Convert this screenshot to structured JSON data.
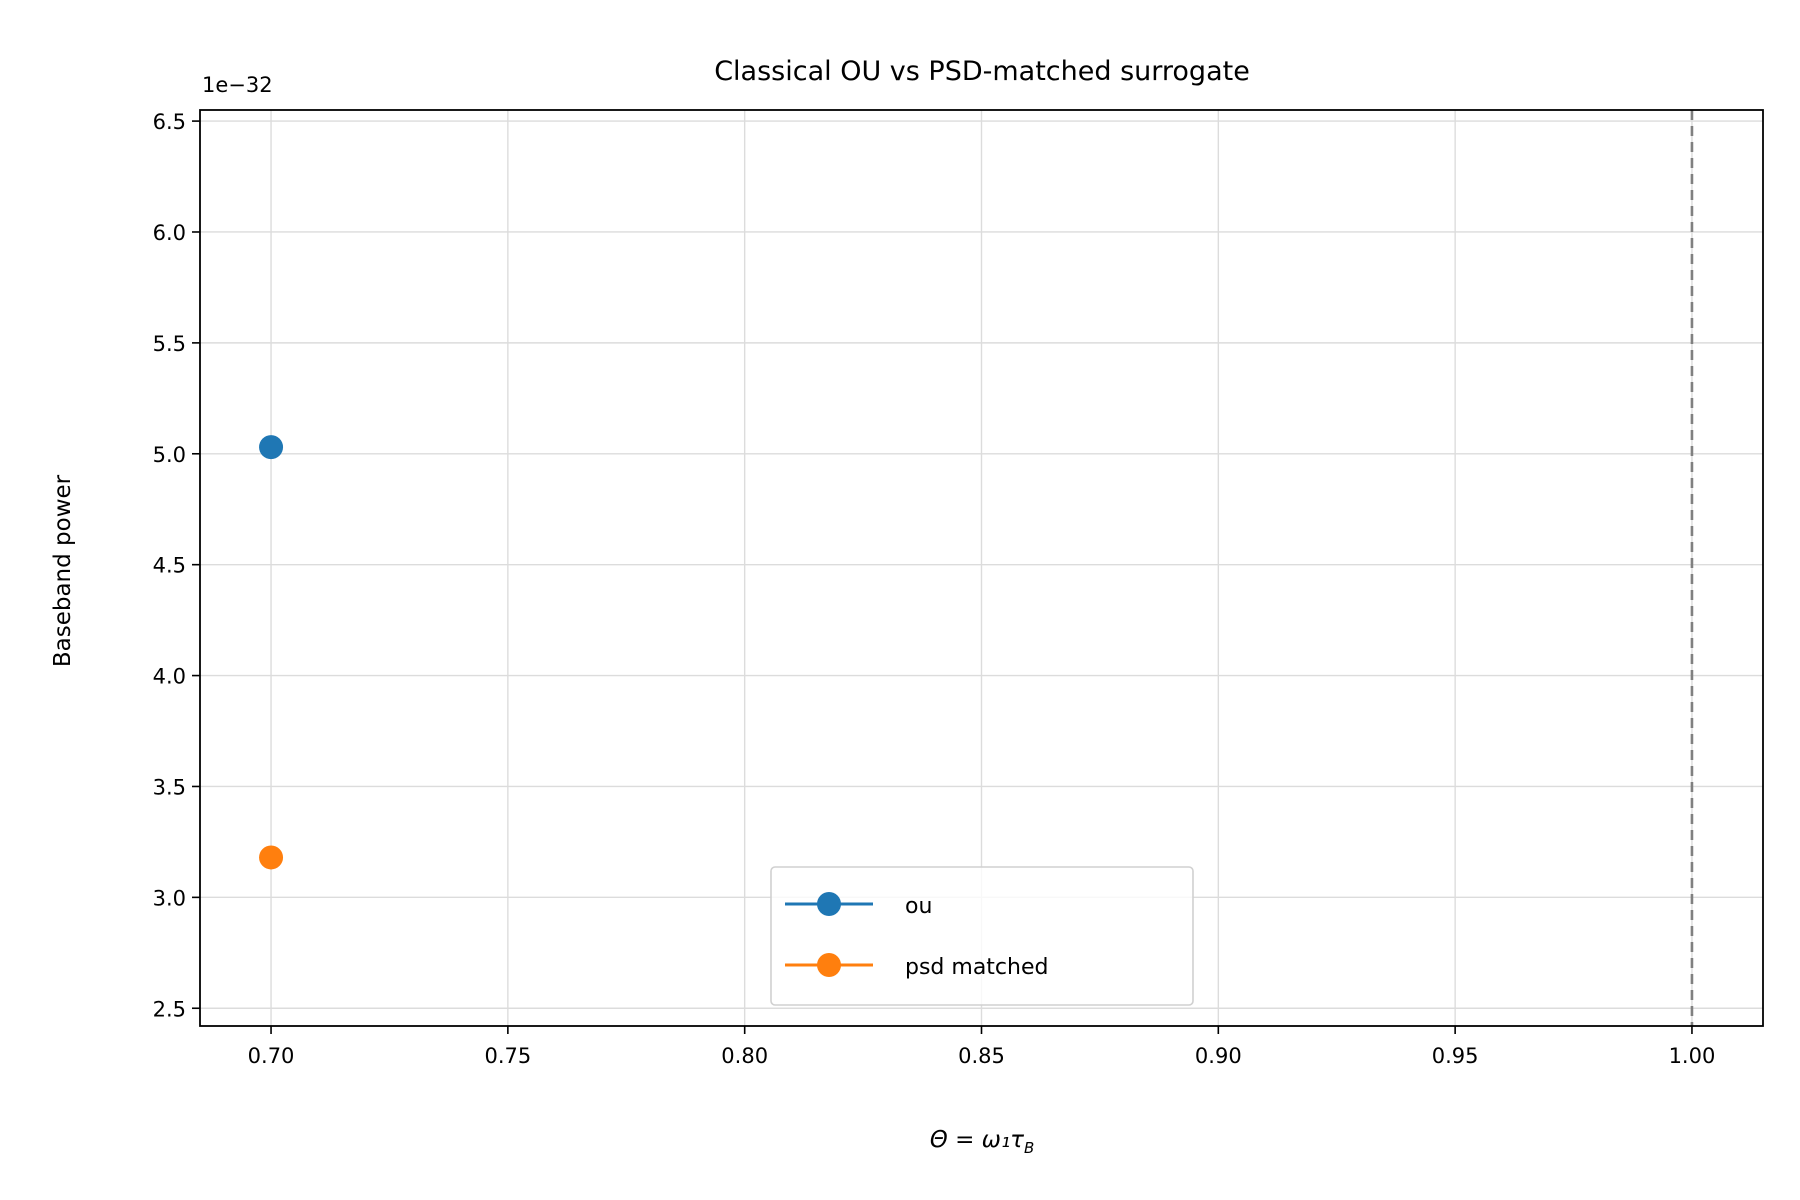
{
  "chart_data": {
    "type": "scatter",
    "title": "Classical OU vs PSD-matched surrogate",
    "xlabel": "Θ = ω₁τ",
    "xlabel_sub": "B",
    "ylabel": "Baseband power",
    "y_offset_text": "1e−32",
    "xlim": [
      0.685,
      1.015
    ],
    "ylim": [
      2.42,
      6.55
    ],
    "x_ticks": [
      0.7,
      0.75,
      0.8,
      0.85,
      0.9,
      0.95,
      1.0
    ],
    "x_tick_labels": [
      "0.70",
      "0.75",
      "0.80",
      "0.85",
      "0.90",
      "0.95",
      "1.00"
    ],
    "y_ticks": [
      2.5,
      3.0,
      3.5,
      4.0,
      4.5,
      5.0,
      5.5,
      6.0,
      6.5
    ],
    "y_tick_labels": [
      "2.5",
      "3.0",
      "3.5",
      "4.0",
      "4.5",
      "5.0",
      "5.5",
      "6.0",
      "6.5"
    ],
    "grid": true,
    "legend_position": "bottom-center",
    "series": [
      {
        "name": "ou",
        "color": "#1f77b4",
        "x": [
          0.7
        ],
        "y": [
          5.03
        ]
      },
      {
        "name": "psd matched",
        "color": "#ff7f0e",
        "x": [
          0.7
        ],
        "y": [
          3.18
        ]
      }
    ],
    "reference_line": {
      "orientation": "vertical",
      "x": 1.0,
      "style": "dashed",
      "color": "#808080"
    }
  }
}
